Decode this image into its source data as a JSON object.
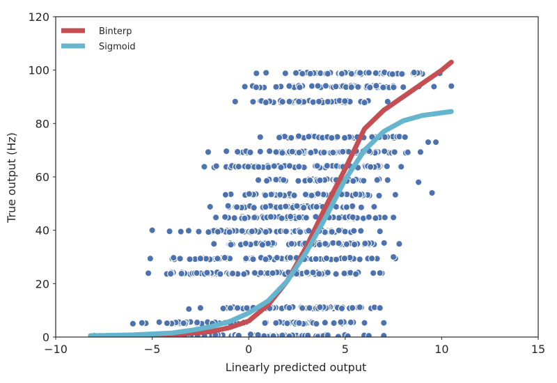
{
  "chart_data": {
    "type": "scatter",
    "xlabel": "Linearly predicted output",
    "ylabel": "True output (Hz)",
    "xlim": [
      -10,
      15
    ],
    "ylim": [
      0,
      120
    ],
    "xticks": [
      -10,
      -5,
      0,
      5,
      10,
      15
    ],
    "yticks": [
      0,
      20,
      40,
      60,
      80,
      100,
      120
    ],
    "xtick_labels": [
      "−10",
      "−5",
      "0",
      "5",
      "10",
      "15"
    ],
    "ytick_labels": [
      "0",
      "20",
      "40",
      "60",
      "80",
      "100",
      "120"
    ],
    "grid": false,
    "legend_position": "top-left",
    "scatter": {
      "color": "#4c72b0",
      "bands": [
        {
          "y": 0.5,
          "x_min": -8.0,
          "x_max": 7.0
        },
        {
          "y": 5.3,
          "x_min": -6.0,
          "x_max": 6.0
        },
        {
          "y": 10.9,
          "x_min": -2.5,
          "x_max": 6.8
        },
        {
          "y": 23.9,
          "x_min": -5.2,
          "x_max": 6.9
        },
        {
          "y": 29.4,
          "x_min": -5.1,
          "x_max": 7.6
        },
        {
          "y": 34.9,
          "x_min": -1.8,
          "x_max": 7.8
        },
        {
          "y": 39.6,
          "x_min": -4.1,
          "x_max": 6.8
        },
        {
          "y": 44.8,
          "x_min": -1.7,
          "x_max": 7.5
        },
        {
          "y": 48.8,
          "x_min": -2.0,
          "x_max": 6.5
        },
        {
          "y": 53.3,
          "x_min": -1.2,
          "x_max": 7.6
        },
        {
          "y": 58.8,
          "x_min": 0.5,
          "x_max": 7.2
        },
        {
          "y": 63.8,
          "x_min": -2.3,
          "x_max": 7.9
        },
        {
          "y": 69.3,
          "x_min": -2.1,
          "x_max": 8.9
        },
        {
          "y": 74.9,
          "x_min": 0.6,
          "x_max": 8.1
        },
        {
          "y": 88.2,
          "x_min": -0.7,
          "x_max": 7.2
        },
        {
          "y": 93.8,
          "x_min": -0.2,
          "x_max": 9.6
        },
        {
          "y": 98.8,
          "x_min": 1.9,
          "x_max": 9.9
        }
      ],
      "outliers": [
        {
          "x": -6.0,
          "y": 5.0
        },
        {
          "x": -5.0,
          "y": 40.0
        },
        {
          "x": -3.1,
          "y": 10.5
        },
        {
          "x": 0.1,
          "y": 1.0
        },
        {
          "x": 0.4,
          "y": 98.8
        },
        {
          "x": 0.9,
          "y": 99.0
        },
        {
          "x": 2.6,
          "y": 88.2
        },
        {
          "x": 7.0,
          "y": 5.3
        },
        {
          "x": 6.8,
          "y": 24.0
        },
        {
          "x": 7.5,
          "y": 30.0
        },
        {
          "x": 8.8,
          "y": 58.0
        },
        {
          "x": 9.3,
          "y": 73.0
        },
        {
          "x": 9.5,
          "y": 54.0
        },
        {
          "x": 10.5,
          "y": 94.0
        },
        {
          "x": 9.7,
          "y": 73.0
        }
      ]
    },
    "series": [
      {
        "name": "Binterp",
        "color": "#c44e52",
        "x": [
          -8.2,
          -6,
          -4,
          -2,
          -1,
          0,
          1,
          2,
          3,
          4,
          5,
          6,
          7,
          8,
          9,
          10,
          10.5
        ],
        "y": [
          0.5,
          0.6,
          0.8,
          2,
          3.5,
          6,
          12,
          21,
          34,
          49,
          63,
          78,
          85,
          90,
          95,
          100,
          103
        ]
      },
      {
        "name": "Sigmoid",
        "color": "#64b5cd",
        "x": [
          -8.2,
          -6,
          -4,
          -3,
          -2,
          -1,
          0,
          1,
          2,
          3,
          4,
          5,
          6,
          7,
          8,
          9,
          10,
          10.5
        ],
        "y": [
          0.5,
          0.8,
          1.5,
          2.5,
          3.8,
          5.8,
          9,
          13.5,
          21,
          32,
          45,
          59,
          70,
          77,
          81,
          83,
          84,
          84.5
        ]
      }
    ]
  }
}
